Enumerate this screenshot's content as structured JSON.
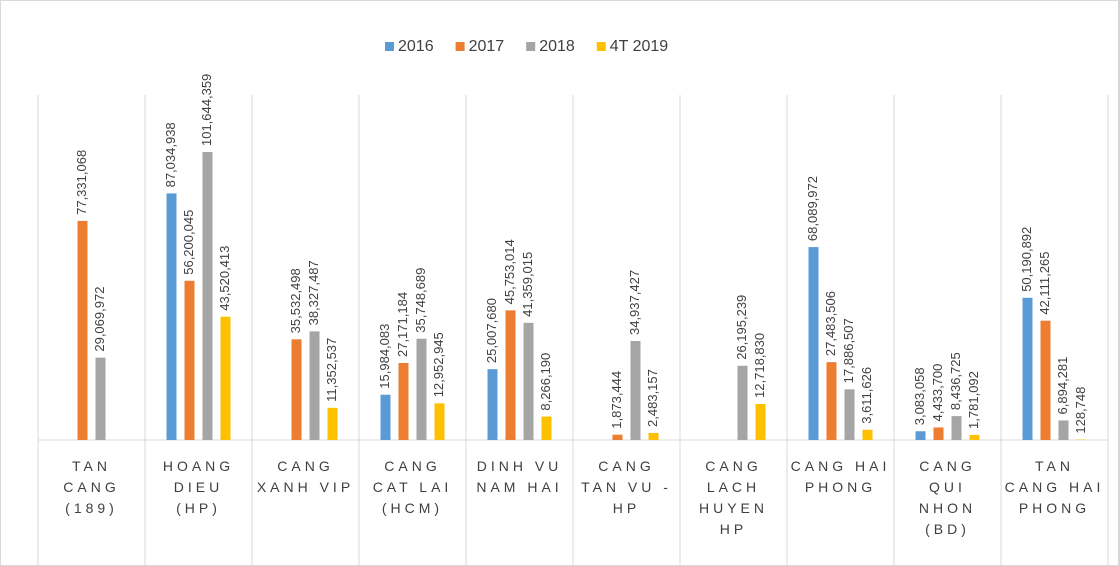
{
  "chart_data": {
    "type": "bar",
    "categories": [
      "TAN CANG (189)",
      "HOANG DIEU (HP)",
      "CANG XANH VIP",
      "CANG CAT LAI (HCM)",
      "DINH VU NAM HAI",
      "CANG TAN VU - HP",
      "CANG LACH HUYEN HP",
      "CANG HAI PHONG",
      "CANG QUI NHON (BD)",
      "TAN CANG HAI PHONG"
    ],
    "series": [
      {
        "name": "2016",
        "color": "#5b9bd5",
        "values": [
          null,
          87034938,
          null,
          15984083,
          25007680,
          null,
          null,
          68089972,
          3083058,
          50190892
        ],
        "value_labels": [
          null,
          "87,034,938",
          null,
          "15,984,083",
          "25,007,680",
          null,
          null,
          "68,089,972",
          "3,083,058",
          "50,190,892"
        ]
      },
      {
        "name": "2017",
        "color": "#ed7d31",
        "values": [
          77331068,
          56200045,
          35532498,
          27171184,
          45753014,
          1873444,
          null,
          27483506,
          4433700,
          42111265
        ],
        "value_labels": [
          "77,331,068",
          "56,200,045",
          "35,532,498",
          "27,171,184",
          "45,753,014",
          "1,873,444",
          null,
          "27,483,506",
          "4,433,700",
          "42,111,265"
        ]
      },
      {
        "name": "2018",
        "color": "#a5a5a5",
        "values": [
          29069972,
          101644359,
          38327487,
          35748689,
          41359015,
          34937427,
          26195239,
          17886507,
          8436725,
          6894281
        ],
        "value_labels": [
          "29,069,972",
          "101,644,359",
          "38,327,487",
          "35,748,689",
          "41,359,015",
          "34,937,427",
          "26,195,239",
          "17,886,507",
          "8,436,725",
          "6,894,281"
        ]
      },
      {
        "name": "4T 2019",
        "color": "#ffc000",
        "values": [
          null,
          43520413,
          11352537,
          12952945,
          8266190,
          2483157,
          12718830,
          3611626,
          1781092,
          128748
        ],
        "value_labels": [
          null,
          "43,520,413",
          "11,352,537",
          "12,952,945",
          "8,266,190",
          "2,483,157",
          "12,718,830",
          "3,611,626",
          "1,781,092",
          "128,748"
        ]
      }
    ],
    "ylim": [
      0,
      120000000
    ],
    "legend": "top"
  }
}
